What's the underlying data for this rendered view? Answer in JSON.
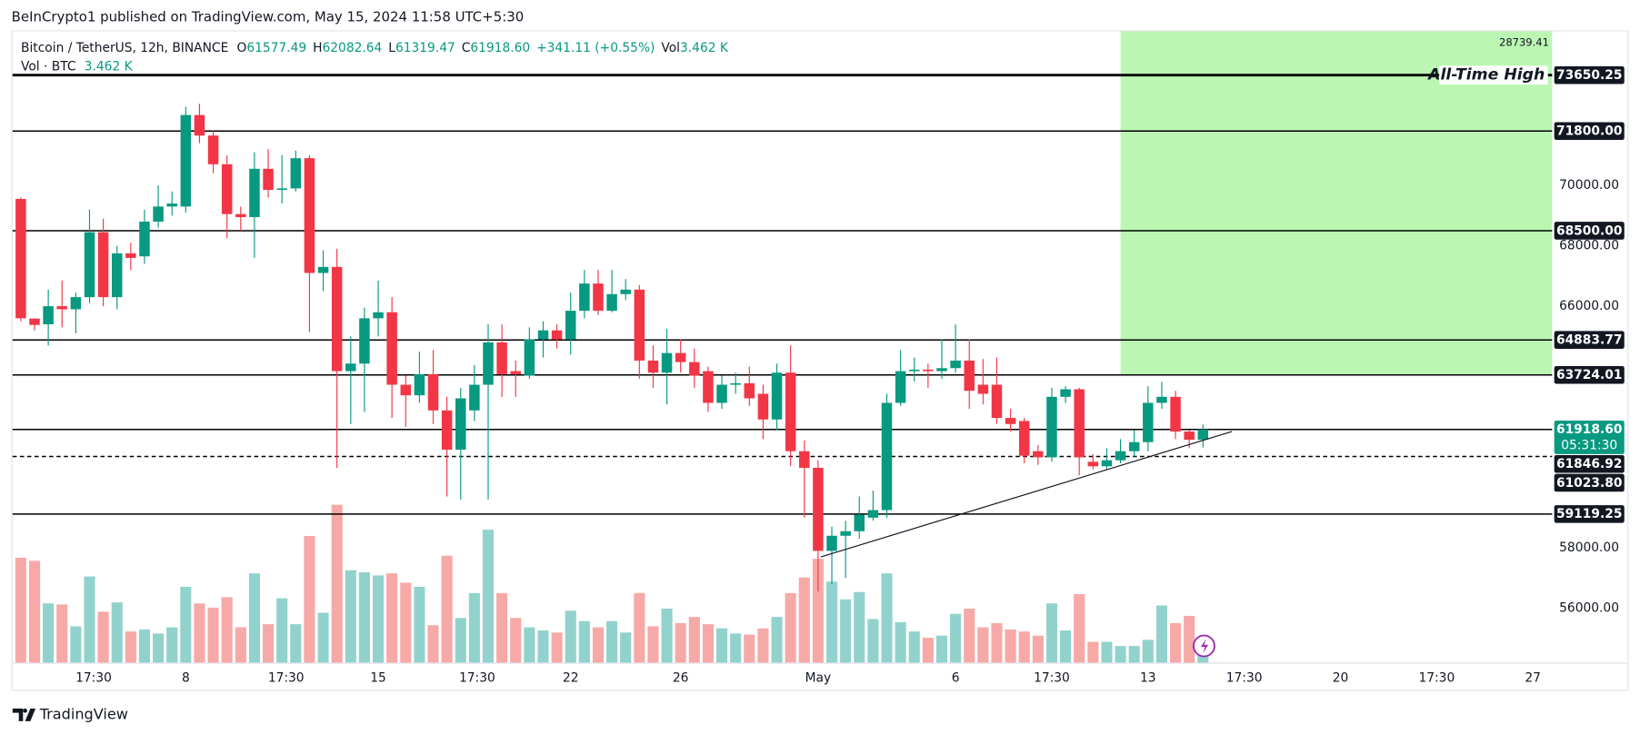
{
  "header": "BeInCrypto1 published on TradingView.com, May 15, 2024 11:58 UTC+5:30",
  "footer": "TradingView",
  "chart_data": {
    "type": "candlestick",
    "legend": {
      "symbol": "Bitcoin / TetherUS, 12h, BINANCE",
      "items": [
        {
          "key": "O",
          "value": "61577.49"
        },
        {
          "key": "H",
          "value": "62082.64"
        },
        {
          "key": "L",
          "value": "61319.47"
        },
        {
          "key": "C",
          "value": "61918.60"
        }
      ],
      "change": "+341.11 (+0.55%)",
      "vol_key": "Vol",
      "vol_value": "3.462 K",
      "vol_title": "Vol · BTC"
    },
    "up_color": "#089981",
    "down_color": "#f23645",
    "volume_up_color": "#92d2cc",
    "volume_down_color": "#f7a9a7",
    "open": [
      69550,
      65590,
      65400,
      66000,
      65900,
      66300,
      68450,
      66300,
      67750,
      67650,
      68800,
      69300,
      69300,
      72330,
      71650,
      70700,
      69050,
      68950,
      70550,
      69850,
      69900,
      70900,
      67100,
      67300,
      63850,
      64100,
      65600,
      65800,
      63400,
      63050,
      63750,
      62550,
      61250,
      62550,
      63400,
      64800,
      63850,
      63700,
      64900,
      65200,
      64900,
      65850,
      66750,
      65850,
      66400,
      66550,
      64200,
      63800,
      64450,
      64150,
      63850,
      62800,
      63400,
      63450,
      63100,
      62250,
      63800,
      61200,
      60650,
      57900,
      58400,
      58550,
      59000,
      59250,
      62800,
      63850,
      63900,
      63850,
      63950,
      64200,
      63400,
      63400,
      62300,
      62200,
      61200,
      61000,
      63000,
      63250,
      60850,
      60700,
      60900,
      61200,
      61500,
      62800,
      63000,
      61850,
      61577.49
    ],
    "high": [
      69600,
      65600,
      66550,
      66850,
      66450,
      69200,
      68900,
      68000,
      68100,
      69200,
      70000,
      69800,
      72600,
      72700,
      71800,
      71000,
      69300,
      71100,
      71200,
      71000,
      71150,
      71000,
      67850,
      67900,
      65000,
      65950,
      66850,
      66300,
      63700,
      64500,
      64550,
      63000,
      63300,
      64050,
      65400,
      65400,
      64200,
      65300,
      65500,
      65400,
      66450,
      67200,
      67200,
      67200,
      66900,
      66700,
      64700,
      65250,
      64900,
      64600,
      64000,
      63700,
      63800,
      64000,
      63400,
      64100,
      64700,
      61550,
      60900,
      58700,
      58900,
      59700,
      59900,
      63100,
      64550,
      64300,
      64100,
      64900,
      65400,
      64900,
      64250,
      64300,
      62600,
      62300,
      61400,
      63300,
      63350,
      63300,
      61100,
      61300,
      61600,
      61900,
      63350,
      63500,
      63200,
      61900,
      62082.64
    ],
    "low": [
      65500,
      65200,
      64700,
      65300,
      65100,
      66100,
      66000,
      65900,
      67200,
      67400,
      68600,
      69000,
      69100,
      71400,
      70400,
      68250,
      68500,
      67600,
      69600,
      69400,
      69800,
      65150,
      66500,
      60650,
      62100,
      62500,
      65000,
      62300,
      62000,
      62800,
      62100,
      59700,
      59600,
      62200,
      59600,
      63000,
      63000,
      63600,
      64300,
      64600,
      64400,
      65600,
      65700,
      65800,
      66200,
      63600,
      63300,
      62750,
      63800,
      63300,
      62500,
      62600,
      63100,
      62700,
      61600,
      61900,
      60700,
      59000,
      56550,
      56800,
      57000,
      58300,
      58900,
      59000,
      62700,
      63500,
      63300,
      63600,
      63800,
      62600,
      62750,
      62100,
      61850,
      60800,
      60750,
      60850,
      62800,
      60400,
      60600,
      60600,
      60800,
      61000,
      61200,
      62600,
      61600,
      61300,
      61319.47
    ],
    "close": [
      65600,
      65380,
      66000,
      65900,
      66300,
      68450,
      66300,
      67750,
      67600,
      68800,
      69300,
      69400,
      72330,
      71650,
      70700,
      69050,
      68950,
      70550,
      69850,
      69900,
      70900,
      67100,
      67300,
      63850,
      64100,
      65600,
      65800,
      63400,
      63050,
      63750,
      62550,
      61250,
      62950,
      63400,
      64800,
      63750,
      63750,
      64900,
      65200,
      64900,
      65850,
      66750,
      65850,
      66400,
      66550,
      64200,
      63800,
      64450,
      64150,
      63700,
      62800,
      63400,
      63450,
      62950,
      62250,
      63800,
      61200,
      60650,
      57900,
      58400,
      58550,
      59100,
      59250,
      62800,
      63850,
      63900,
      63850,
      63950,
      64200,
      63200,
      63100,
      62300,
      62100,
      61050,
      61000,
      63000,
      63250,
      61000,
      60700,
      60900,
      61200,
      61500,
      62800,
      63000,
      61850,
      61577.49,
      61918.6
    ],
    "volume": [
      40.4,
      39.2,
      22.8,
      22.4,
      14,
      33.2,
      19.6,
      23.2,
      12,
      12.8,
      11.2,
      13.6,
      29.2,
      22.8,
      21.2,
      25.2,
      13.6,
      34.4,
      14.8,
      24.8,
      14.8,
      48.8,
      19.2,
      60.8,
      35.6,
      34.8,
      33.6,
      34.4,
      30.8,
      29.2,
      14.4,
      41.2,
      17.2,
      26.8,
      51.2,
      26.8,
      17.2,
      13.6,
      12.4,
      11.6,
      20,
      16,
      13.6,
      16,
      11.6,
      26.8,
      14,
      20.8,
      15.2,
      17.6,
      14.8,
      13.2,
      11.2,
      10.8,
      13.2,
      17.6,
      26.8,
      32.8,
      40,
      31.2,
      24.4,
      27.2,
      16.8,
      34.4,
      15.6,
      12,
      9.6,
      10.4,
      18.8,
      20.8,
      13.6,
      15.2,
      12.8,
      12,
      10.4,
      22.8,
      12.4,
      26.4,
      8,
      8,
      6.4,
      6.4,
      8.8,
      22,
      15.2,
      18,
      3.462
    ],
    "xlim": [
      -0.6,
      111.4
    ],
    "xticks": [
      {
        "value": 5.3,
        "label": "17:30"
      },
      {
        "value": 12,
        "label": "8"
      },
      {
        "value": 19.3,
        "label": "17:30"
      },
      {
        "value": 26,
        "label": "15"
      },
      {
        "value": 33.2,
        "label": "17:30"
      },
      {
        "value": 40,
        "label": "22"
      },
      {
        "value": 48,
        "label": "26"
      },
      {
        "value": 58,
        "label": "May"
      },
      {
        "value": 68,
        "label": "6"
      },
      {
        "value": 75,
        "label": "17:30"
      },
      {
        "value": 82,
        "label": "13"
      },
      {
        "value": 89,
        "label": "17:30"
      },
      {
        "value": 96,
        "label": "20"
      },
      {
        "value": 103,
        "label": "17:30"
      },
      {
        "value": 110,
        "label": "27"
      }
    ],
    "ylim": [
      54200,
      75100
    ],
    "yticks": [
      {
        "value": 56000,
        "label": "56000.00"
      },
      {
        "value": 58000,
        "label": "58000.00"
      },
      {
        "value": 66000,
        "label": "66000.00"
      },
      {
        "value": 68000,
        "label": "68000.00"
      },
      {
        "value": 70000,
        "label": "70000.00"
      }
    ],
    "levels": [
      {
        "value": 73650.25,
        "label": "73650.25",
        "line": "thick",
        "note": "All-Time High"
      },
      {
        "value": 71800,
        "label": "71800.00",
        "line": "solid"
      },
      {
        "value": 68500,
        "label": "68500.00",
        "line": "solid"
      },
      {
        "value": 64883.77,
        "label": "64883.77",
        "line": "solid"
      },
      {
        "value": 63724.01,
        "label": "63724.01",
        "line": "solid"
      },
      {
        "value": 61846.92,
        "label": "61846.92"
      },
      {
        "value": 61023.8,
        "label": "61023.80",
        "line": "dashed"
      },
      {
        "value": 59119.25,
        "label": "59119.25",
        "line": "solid"
      }
    ],
    "current": {
      "value": 61918.6,
      "label": "61918.60",
      "countdown": "05:31:30"
    },
    "box": {
      "x_start": 80,
      "y_low": 63724.01,
      "label": "28739.41",
      "color": "#bbf7b3"
    },
    "trendline": {
      "x": [
        58.2,
        88.1
      ],
      "y": [
        57700,
        61850
      ]
    }
  }
}
